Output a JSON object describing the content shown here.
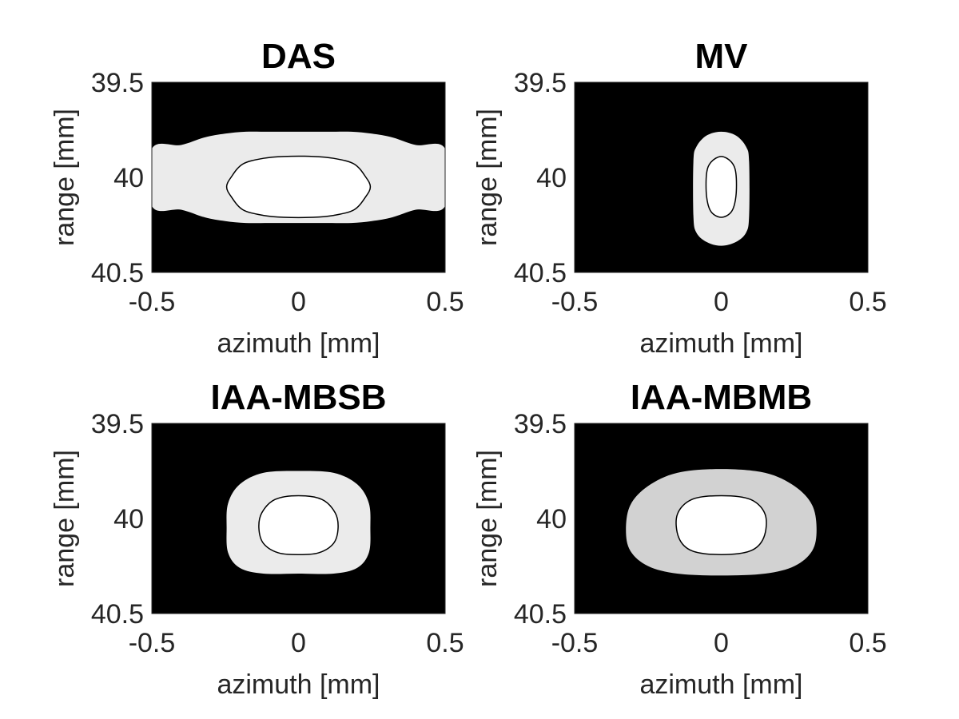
{
  "chart_data": [
    {
      "type": "contour",
      "title": "DAS",
      "xlabel": "azimuth [mm]",
      "ylabel": "range [mm]",
      "xlim": [
        -0.5,
        0.5
      ],
      "ylim": [
        39.5,
        40.5
      ],
      "y_reversed": true,
      "xticks": [
        -0.5,
        0,
        0.5
      ],
      "xtick_labels": [
        "-0.5",
        "0",
        "0.5"
      ],
      "yticks": [
        39.5,
        40,
        40.5
      ],
      "ytick_labels": [
        "39.5",
        "40",
        "40.5"
      ],
      "background_color": "#000000",
      "regions": [
        {
          "fill": "#ebebeb",
          "outline": "none",
          "x": [
            -0.5,
            -0.4,
            -0.32,
            -0.25,
            -0.18,
            -0.1,
            0,
            0.1,
            0.18,
            0.25,
            0.32,
            0.4,
            0.5,
            0.5,
            0.4,
            0.32,
            0.25,
            0.18,
            0.1,
            0,
            -0.1,
            -0.18,
            -0.25,
            -0.32,
            -0.4,
            -0.5
          ],
          "y": [
            39.85,
            39.83,
            39.79,
            39.77,
            39.76,
            39.76,
            39.76,
            39.76,
            39.76,
            39.77,
            39.79,
            39.83,
            39.85,
            40.15,
            40.17,
            40.21,
            40.23,
            40.24,
            40.24,
            40.24,
            40.24,
            40.24,
            40.23,
            40.21,
            40.17,
            40.15
          ]
        },
        {
          "fill": "#ffffff",
          "outline": "#000000",
          "x": [
            -0.245,
            -0.23,
            -0.19,
            -0.12,
            -0.05,
            0.05,
            0.12,
            0.19,
            0.23,
            0.245,
            0.23,
            0.19,
            0.12,
            0.05,
            -0.05,
            -0.12,
            -0.19,
            -0.23
          ],
          "y": [
            40.05,
            40.0,
            39.93,
            39.9,
            39.89,
            39.89,
            39.9,
            39.93,
            40.0,
            40.05,
            40.1,
            40.17,
            40.2,
            40.21,
            40.21,
            40.2,
            40.17,
            40.1
          ]
        }
      ]
    },
    {
      "type": "contour",
      "title": "MV",
      "xlabel": "azimuth [mm]",
      "ylabel": "range [mm]",
      "xlim": [
        -0.5,
        0.5
      ],
      "ylim": [
        39.5,
        40.5
      ],
      "y_reversed": true,
      "xticks": [
        -0.5,
        0,
        0.5
      ],
      "xtick_labels": [
        "-0.5",
        "0",
        "0.5"
      ],
      "yticks": [
        39.5,
        40,
        40.5
      ],
      "ytick_labels": [
        "39.5",
        "40",
        "40.5"
      ],
      "background_color": "#000000",
      "regions": [
        {
          "fill": "#ebebeb",
          "outline": "none",
          "x": [
            0,
            0.05,
            0.085,
            0.095,
            0.095,
            0.085,
            0.05,
            0,
            -0.05,
            -0.085,
            -0.095,
            -0.095,
            -0.085,
            -0.05
          ],
          "y": [
            39.76,
            39.78,
            39.84,
            39.92,
            40.2,
            40.29,
            40.34,
            40.36,
            40.34,
            40.29,
            40.2,
            39.92,
            39.84,
            39.78
          ]
        },
        {
          "fill": "#ffffff",
          "outline": "#000000",
          "x": [
            0,
            0.035,
            0.05,
            0.05,
            0.035,
            0,
            -0.035,
            -0.05,
            -0.05,
            -0.035
          ],
          "y": [
            39.89,
            39.92,
            39.98,
            40.1,
            40.18,
            40.21,
            40.18,
            40.1,
            39.98,
            39.92
          ]
        }
      ]
    },
    {
      "type": "contour",
      "title": "IAA-MBSB",
      "xlabel": "azimuth [mm]",
      "ylabel": "range [mm]",
      "xlim": [
        -0.5,
        0.5
      ],
      "ylim": [
        39.5,
        40.5
      ],
      "y_reversed": true,
      "xticks": [
        -0.5,
        0,
        0.5
      ],
      "xtick_labels": [
        "-0.5",
        "0",
        "0.5"
      ],
      "yticks": [
        39.5,
        40,
        40.5
      ],
      "ytick_labels": [
        "39.5",
        "40",
        "40.5"
      ],
      "background_color": "#000000",
      "regions": [
        {
          "fill": "#ebebeb",
          "outline": "none",
          "x": [
            0,
            0.12,
            0.2,
            0.24,
            0.245,
            0.24,
            0.2,
            0.12,
            0,
            -0.12,
            -0.2,
            -0.24,
            -0.245,
            -0.24,
            -0.2,
            -0.12
          ],
          "y": [
            39.75,
            39.76,
            39.82,
            39.92,
            40.05,
            40.18,
            40.26,
            40.29,
            40.29,
            40.29,
            40.26,
            40.18,
            40.05,
            39.92,
            39.82,
            39.76
          ]
        },
        {
          "fill": "#ffffff",
          "outline": "#000000",
          "x": [
            0,
            0.08,
            0.125,
            0.135,
            0.12,
            0.07,
            0,
            -0.07,
            -0.12,
            -0.135,
            -0.125,
            -0.08
          ],
          "y": [
            39.88,
            39.9,
            39.97,
            40.05,
            40.13,
            40.18,
            40.19,
            40.18,
            40.13,
            40.05,
            39.97,
            39.9
          ]
        }
      ]
    },
    {
      "type": "contour",
      "title": "IAA-MBMB",
      "xlabel": "azimuth [mm]",
      "ylabel": "range [mm]",
      "xlim": [
        -0.5,
        0.5
      ],
      "ylim": [
        39.5,
        40.5
      ],
      "y_reversed": true,
      "xticks": [
        -0.5,
        0,
        0.5
      ],
      "xtick_labels": [
        "-0.5",
        "0",
        "0.5"
      ],
      "yticks": [
        39.5,
        40,
        40.5
      ],
      "ytick_labels": [
        "39.5",
        "40",
        "40.5"
      ],
      "background_color": "#000000",
      "regions": [
        {
          "fill": "#d2d2d2",
          "outline": "none",
          "x": [
            0,
            0.15,
            0.25,
            0.31,
            0.325,
            0.31,
            0.25,
            0.15,
            0,
            -0.15,
            -0.25,
            -0.31,
            -0.325,
            -0.31,
            -0.25,
            -0.15
          ],
          "y": [
            39.74,
            39.76,
            39.83,
            39.93,
            40.06,
            40.17,
            40.25,
            40.29,
            40.3,
            40.29,
            40.25,
            40.17,
            40.06,
            39.93,
            39.83,
            39.76
          ]
        },
        {
          "fill": "#ffffff",
          "outline": "#000000",
          "x": [
            0,
            0.1,
            0.15,
            0.145,
            0.1,
            0,
            -0.1,
            -0.145,
            -0.15,
            -0.1
          ],
          "y": [
            39.88,
            39.9,
            39.98,
            40.1,
            40.17,
            40.19,
            40.17,
            40.1,
            39.98,
            39.9
          ]
        }
      ]
    }
  ]
}
